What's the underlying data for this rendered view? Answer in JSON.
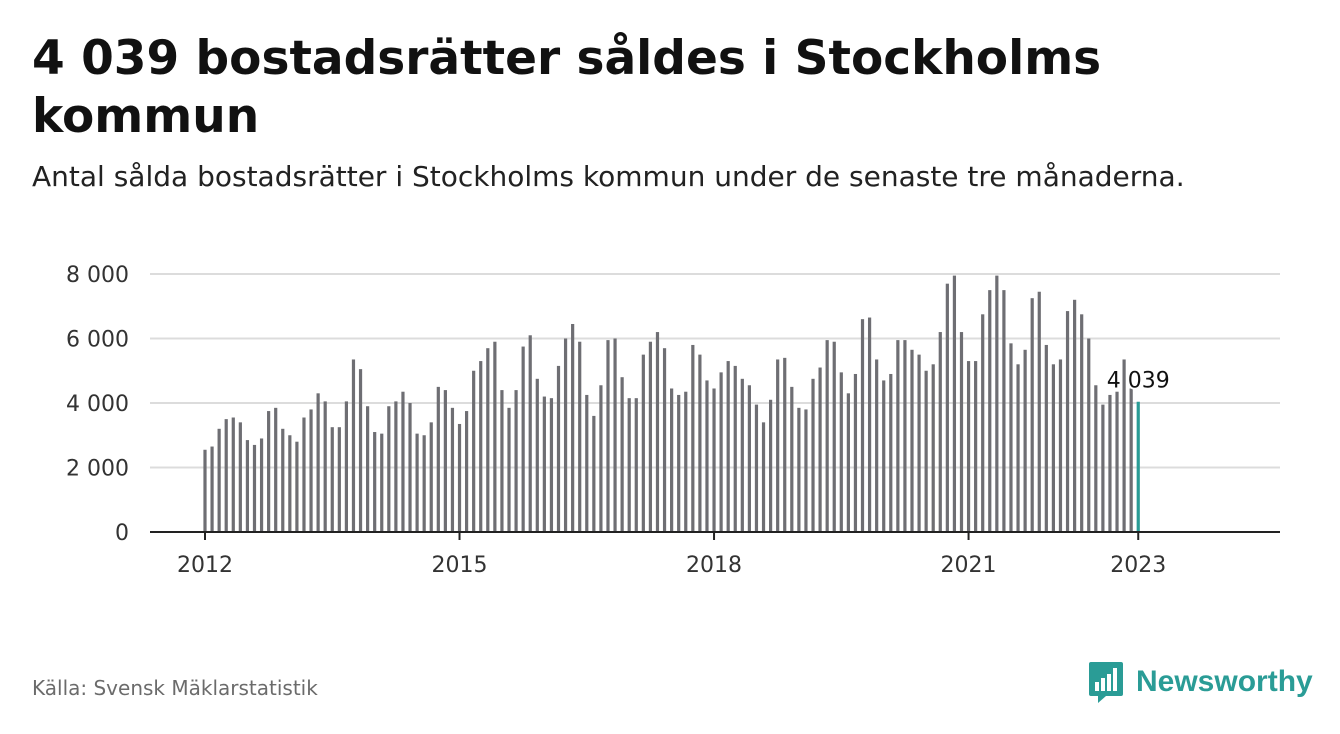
{
  "title": "4 039 bostadsrätter såldes i Stockholms kommun",
  "subtitle": "Antal sålda bostadsrätter i Stockholms kommun under de senaste tre månaderna.",
  "source": "Källa: Svensk Mäklarstatistik",
  "brand": {
    "name": "Newsworthy",
    "color": "#2a9c96",
    "icon": "newsworthy-logo-icon"
  },
  "colors": {
    "bar": "#6e6e73",
    "highlight": "#2a9c96",
    "grid": "#dcdcdc",
    "axis": "#222222"
  },
  "chart_data": {
    "type": "bar",
    "x_start": "2012-01",
    "x_ticks": [
      "2012",
      "2015",
      "2018",
      "2021",
      "2023"
    ],
    "x_tick_dates": [
      "2012-01",
      "2015-01",
      "2018-01",
      "2021-01",
      "2023-01"
    ],
    "y_ticks": [
      "0",
      "2 000",
      "4 000",
      "6 000",
      "8 000"
    ],
    "y_tick_values": [
      0,
      2000,
      4000,
      6000,
      8000
    ],
    "ylim": [
      0,
      8000
    ],
    "grid": true,
    "highlight_label": "4 039",
    "values": [
      2550,
      2650,
      3200,
      3500,
      3550,
      3400,
      2850,
      2700,
      2900,
      3750,
      3850,
      3200,
      3000,
      2800,
      3550,
      3800,
      4300,
      4050,
      3250,
      3250,
      4050,
      5350,
      5050,
      3900,
      3100,
      3050,
      3900,
      4050,
      4350,
      4000,
      3050,
      3000,
      3400,
      4500,
      4400,
      3850,
      3350,
      3750,
      5000,
      5300,
      5700,
      5900,
      4400,
      3850,
      4400,
      5750,
      6100,
      4750,
      4200,
      4150,
      5150,
      6000,
      6450,
      5900,
      4250,
      3600,
      4550,
      5950,
      6000,
      4800,
      4150,
      4150,
      5500,
      5900,
      6200,
      5700,
      4450,
      4250,
      4350,
      5800,
      5500,
      4700,
      4450,
      4950,
      5300,
      5150,
      4750,
      4550,
      3950,
      3400,
      4100,
      5350,
      5400,
      4500,
      3850,
      3800,
      4750,
      5100,
      5950,
      5900,
      4950,
      4300,
      4900,
      6600,
      6650,
      5350,
      4700,
      4900,
      5950,
      5950,
      5650,
      5500,
      5000,
      5200,
      6200,
      7700,
      7950,
      6200,
      5300,
      5300,
      6750,
      7500,
      7950,
      7500,
      5850,
      5200,
      5650,
      7250,
      7450,
      5800,
      5200,
      5350,
      6850,
      7200,
      6750,
      6000,
      4550,
      3950,
      4250,
      4350,
      5350,
      4450,
      4039
    ]
  }
}
